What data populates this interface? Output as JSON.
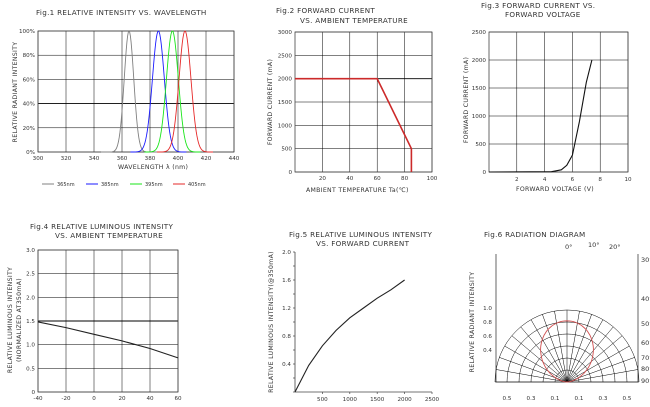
{
  "chart_data": [
    {
      "type": "line",
      "title": "Fig.1 RELATIVE INTENSITY VS. WAVELENGTH",
      "xlabel": "WAVELENGTH λ (nm)",
      "ylabel": "RELATIVE RADIANT INTENSITY",
      "xlim": [
        300,
        440
      ],
      "ylim": [
        0,
        100
      ],
      "xticks": [
        "300",
        "320",
        "340",
        "360",
        "380",
        "400",
        "420",
        "440"
      ],
      "yticks": [
        "0%",
        "20%",
        "40%",
        "60%",
        "80%",
        "100%"
      ],
      "grid": true,
      "legend_position": "bottom",
      "series": [
        {
          "name": "365nm",
          "color": "#808080",
          "peak": 365,
          "fwhm": 8
        },
        {
          "name": "385nm",
          "color": "#1a1aff",
          "peak": 386,
          "fwhm": 10
        },
        {
          "name": "395nm",
          "color": "#19e619",
          "peak": 396,
          "fwhm": 10
        },
        {
          "name": "405nm",
          "color": "#e62828",
          "peak": 405,
          "fwhm": 10
        }
      ]
    },
    {
      "type": "line",
      "title": "Fig.2 FORWARD CURRENT VS. AMBIENT TEMPERATURE",
      "xlabel": "AMBIENT TEMPERATURE Ta(℃)",
      "ylabel": "FORWARD CURRENT (mA)",
      "xlim": [
        0,
        100
      ],
      "ylim": [
        0,
        3000
      ],
      "xticks": [
        "20",
        "40",
        "60",
        "80",
        "100"
      ],
      "yticks": [
        "0",
        "500",
        "1000",
        "1500",
        "2000",
        "2500",
        "3000"
      ],
      "grid": true,
      "series": [
        {
          "color": "#cc2a2a",
          "x": [
            0,
            60,
            85,
            85
          ],
          "y": [
            2000,
            2000,
            500,
            0
          ]
        }
      ]
    },
    {
      "type": "line",
      "title": "Fig.3 FORWARD CURRENT VS. FORWARD VOLTAGE",
      "xlabel": "FORWARD VOLTAGE (V)",
      "ylabel": "FORWARD CURRENT (mA)",
      "xlim": [
        0,
        10
      ],
      "ylim": [
        0,
        2500
      ],
      "xticks": [
        "2",
        "4",
        "6",
        "8",
        "10"
      ],
      "yticks": [
        "0",
        "500",
        "1000",
        "1500",
        "2000",
        "2500"
      ],
      "grid": true,
      "series": [
        {
          "color": "#111111",
          "x": [
            0,
            4.5,
            5.2,
            5.6,
            6.0,
            6.5,
            7.0,
            7.4
          ],
          "y": [
            0,
            5,
            40,
            120,
            300,
            900,
            1600,
            2000
          ]
        }
      ]
    },
    {
      "type": "line",
      "title": "Fig.4 RELATIVE LUMINOUS INTENSITY VS. AMBIENT TEMPERATURE",
      "xlabel": "",
      "ylabel": "RELATIVE LUMINOUS INTENSITY (NORMALIZED AT350mA)",
      "xlim": [
        -40,
        60
      ],
      "ylim": [
        0,
        3.0
      ],
      "xticks": [
        "-40",
        "-20",
        "0",
        "20",
        "40",
        "60"
      ],
      "yticks": [
        "0",
        "0.5",
        "1.0",
        "1.5",
        "2.0",
        "2.5",
        "3.0"
      ],
      "grid": true,
      "series": [
        {
          "color": "#222222",
          "x": [
            -40,
            -20,
            0,
            20,
            40,
            60
          ],
          "y": [
            1.48,
            1.36,
            1.22,
            1.08,
            0.92,
            0.72
          ]
        }
      ]
    },
    {
      "type": "line",
      "title": "Fig.5 RELATIVE LUMINOUS INTENSITY VS. FORWARD CURRENT",
      "xlabel": "",
      "ylabel": "RELATIVE LUMINOUS INTENSITY(@350mA)",
      "xlim": [
        0,
        2500
      ],
      "ylim": [
        0,
        2.0
      ],
      "xticks": [
        "500",
        "1000",
        "1500",
        "2000",
        "2500"
      ],
      "yticks": [
        "0",
        "0.2",
        "0.4",
        "0.6",
        "0.8",
        "1.0",
        "1.2",
        "1.4",
        "1.6",
        "1.8",
        "2.0"
      ],
      "ytick_labels_shown": [
        "0.4",
        "0.8",
        "1.2",
        "1.6",
        "2.0"
      ],
      "grid": false,
      "series": [
        {
          "color": "#222222",
          "x": [
            0,
            250,
            500,
            750,
            1000,
            1250,
            1500,
            1750,
            2000
          ],
          "y": [
            0,
            0.38,
            0.66,
            0.88,
            1.06,
            1.2,
            1.34,
            1.46,
            1.6
          ]
        }
      ]
    },
    {
      "type": "polar",
      "title": "Fig.6 RADIATION DIAGRAM",
      "ylabel": "RELATIVE RADIANT INTENSITY",
      "radial_ticks": [
        "0.5",
        "0.3",
        "0.1",
        "0.1",
        "0.3",
        "0.5"
      ],
      "left_ticks": [
        "1.0",
        "0.8",
        "0.6",
        "0.4"
      ],
      "angle_ticks": [
        "0°",
        "10°",
        "20°",
        "30°",
        "40°",
        "50°",
        "60°",
        "70°",
        "80°",
        "90°"
      ],
      "pattern_color": "#d05050",
      "pattern_half_angle_deg": 60
    }
  ]
}
